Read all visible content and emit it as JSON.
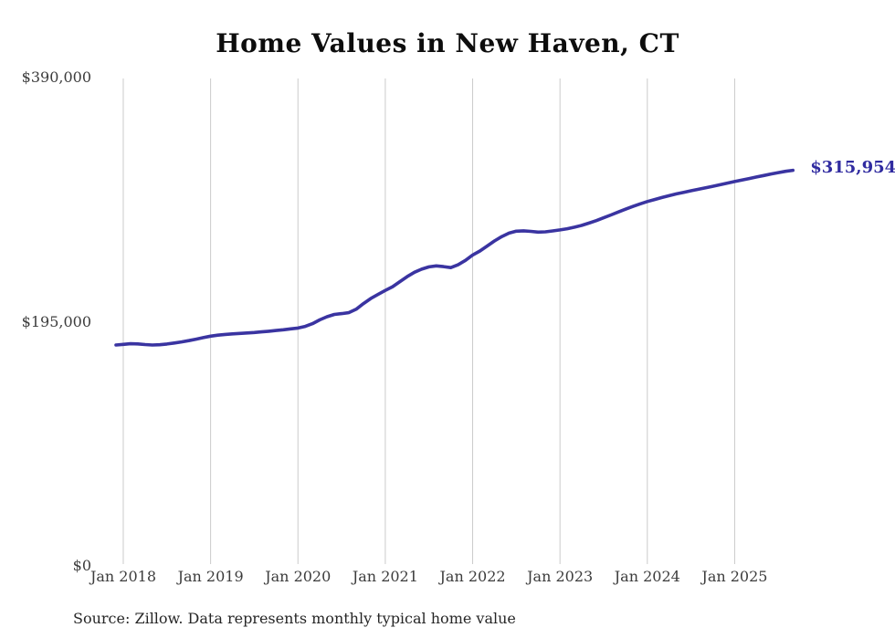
{
  "chart_data": {
    "type": "line",
    "title": "Home Values in New Haven, CT",
    "source_note": "Source: Zillow. Data represents monthly typical home value",
    "end_label": "$315,954",
    "final_value": 315954,
    "ylim": [
      0,
      390000
    ],
    "grid": "vertical-only",
    "legend": "none",
    "y_ticks": [
      {
        "label": "$0",
        "value": 0
      },
      {
        "label": "$195,000",
        "value": 195000
      },
      {
        "label": "$390,000",
        "value": 390000
      }
    ],
    "x_ticks": [
      {
        "label": "Jan 2018",
        "month": "2018-01"
      },
      {
        "label": "Jan 2019",
        "month": "2019-01"
      },
      {
        "label": "Jan 2020",
        "month": "2020-01"
      },
      {
        "label": "Jan 2021",
        "month": "2021-01"
      },
      {
        "label": "Jan 2022",
        "month": "2022-01"
      },
      {
        "label": "Jan 2023",
        "month": "2023-01"
      },
      {
        "label": "Jan 2024",
        "month": "2024-01"
      },
      {
        "label": "Jan 2025",
        "month": "2025-01"
      }
    ],
    "series": [
      {
        "name": "Monthly typical home value",
        "x": [
          "2017-12",
          "2018-01",
          "2018-02",
          "2018-03",
          "2018-04",
          "2018-05",
          "2018-06",
          "2018-07",
          "2018-08",
          "2018-09",
          "2018-10",
          "2018-11",
          "2018-12",
          "2019-01",
          "2019-02",
          "2019-03",
          "2019-04",
          "2019-05",
          "2019-06",
          "2019-07",
          "2019-08",
          "2019-09",
          "2019-10",
          "2019-11",
          "2019-12",
          "2020-01",
          "2020-02",
          "2020-03",
          "2020-04",
          "2020-05",
          "2020-06",
          "2020-07",
          "2020-08",
          "2020-09",
          "2020-10",
          "2020-11",
          "2020-12",
          "2021-01",
          "2021-02",
          "2021-03",
          "2021-04",
          "2021-05",
          "2021-06",
          "2021-07",
          "2021-08",
          "2021-09",
          "2021-10",
          "2021-11",
          "2021-12",
          "2022-01",
          "2022-02",
          "2022-03",
          "2022-04",
          "2022-05",
          "2022-06",
          "2022-07",
          "2022-08",
          "2022-09",
          "2022-10",
          "2022-11",
          "2022-12",
          "2023-01",
          "2023-02",
          "2023-03",
          "2023-04",
          "2023-05",
          "2023-06",
          "2023-07",
          "2023-08",
          "2023-09",
          "2023-10",
          "2023-11",
          "2023-12",
          "2024-01",
          "2024-02",
          "2024-03",
          "2024-04",
          "2024-05",
          "2024-06",
          "2024-07",
          "2024-08",
          "2024-09",
          "2024-10",
          "2024-11",
          "2024-12",
          "2025-01",
          "2025-02",
          "2025-03",
          "2025-04",
          "2025-05",
          "2025-06",
          "2025-07",
          "2025-08",
          "2025-09"
        ],
        "values": [
          176400,
          176900,
          177400,
          177300,
          176800,
          176400,
          176600,
          177200,
          178000,
          178900,
          179900,
          181100,
          182300,
          183500,
          184300,
          184900,
          185300,
          185700,
          186000,
          186400,
          186900,
          187400,
          188000,
          188600,
          189300,
          190000,
          191300,
          193500,
          196500,
          199000,
          200800,
          201500,
          202300,
          205000,
          209500,
          213500,
          216800,
          220000,
          223000,
          227000,
          231000,
          234500,
          237000,
          238800,
          239600,
          239000,
          238200,
          240500,
          244000,
          248300,
          251500,
          255500,
          259500,
          263000,
          265800,
          267300,
          267600,
          267200,
          266600,
          266800,
          267500,
          268300,
          269300,
          270500,
          272000,
          273800,
          275800,
          278000,
          280300,
          282600,
          284900,
          287100,
          289100,
          291000,
          292600,
          294200,
          295700,
          297100,
          298400,
          299600,
          300800,
          302000,
          303200,
          304400,
          305700,
          307000,
          308200,
          309400,
          310600,
          311800,
          313000,
          314100,
          315100,
          315954
        ]
      }
    ],
    "colors": {
      "line": "#3a34a1",
      "end_label": "#302ba0",
      "gridline": "#cbcbcb",
      "axis_text": "#3c3c3c",
      "title_text": "#0d0d0d",
      "source_text": "#262626",
      "background": "#ffffff"
    }
  }
}
